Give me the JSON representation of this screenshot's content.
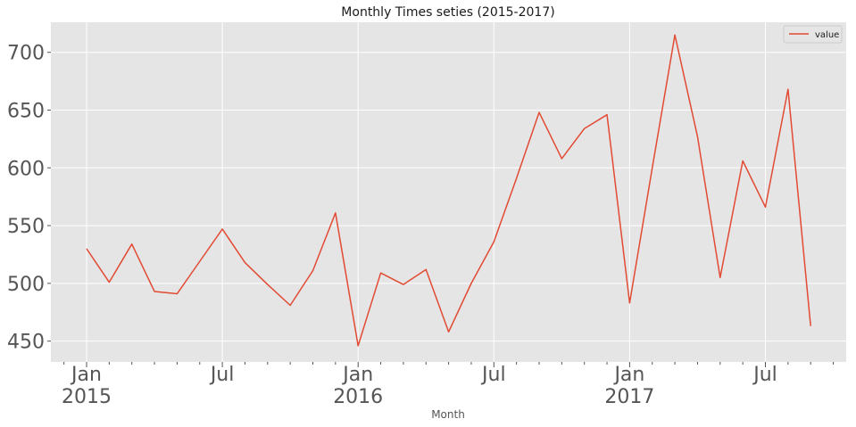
{
  "chart_data": {
    "type": "line",
    "title": "Monthly Times seties (2015-2017)",
    "xlabel": "Month",
    "ylabel": "",
    "x": [
      "2015-01",
      "2015-02",
      "2015-03",
      "2015-04",
      "2015-05",
      "2015-06",
      "2015-07",
      "2015-08",
      "2015-09",
      "2015-10",
      "2015-11",
      "2015-12",
      "2016-01",
      "2016-02",
      "2016-03",
      "2016-04",
      "2016-05",
      "2016-06",
      "2016-07",
      "2016-08",
      "2016-09",
      "2016-10",
      "2016-11",
      "2016-12",
      "2017-01",
      "2017-02",
      "2017-03",
      "2017-04",
      "2017-05",
      "2017-06",
      "2017-07",
      "2017-08",
      "2017-09"
    ],
    "series": [
      {
        "name": "value",
        "color": "#E24A33",
        "values": [
          530,
          501,
          534,
          493,
          491,
          519,
          547,
          518,
          499,
          481,
          511,
          561,
          446,
          509,
          499,
          512,
          458,
          500,
          536,
          591,
          648,
          608,
          634,
          646,
          483,
          600,
          715,
          627,
          505,
          606,
          566,
          668,
          463
        ]
      }
    ],
    "ylim": [
      432,
      726
    ],
    "yticks": [
      "450",
      "500",
      "550",
      "600",
      "650",
      "700"
    ],
    "xticks": [
      {
        "month": "Jan",
        "year": "2015"
      },
      {
        "month": "Jul",
        "year": ""
      },
      {
        "month": "Jan",
        "year": "2016"
      },
      {
        "month": "Jul",
        "year": ""
      },
      {
        "month": "Jan",
        "year": "2017"
      },
      {
        "month": "Jul",
        "year": ""
      }
    ],
    "legend": "top-right",
    "grid": true,
    "colors": {
      "background": "#E5E5E5",
      "grid": "#FFFFFF",
      "line": "#E24A33"
    }
  }
}
